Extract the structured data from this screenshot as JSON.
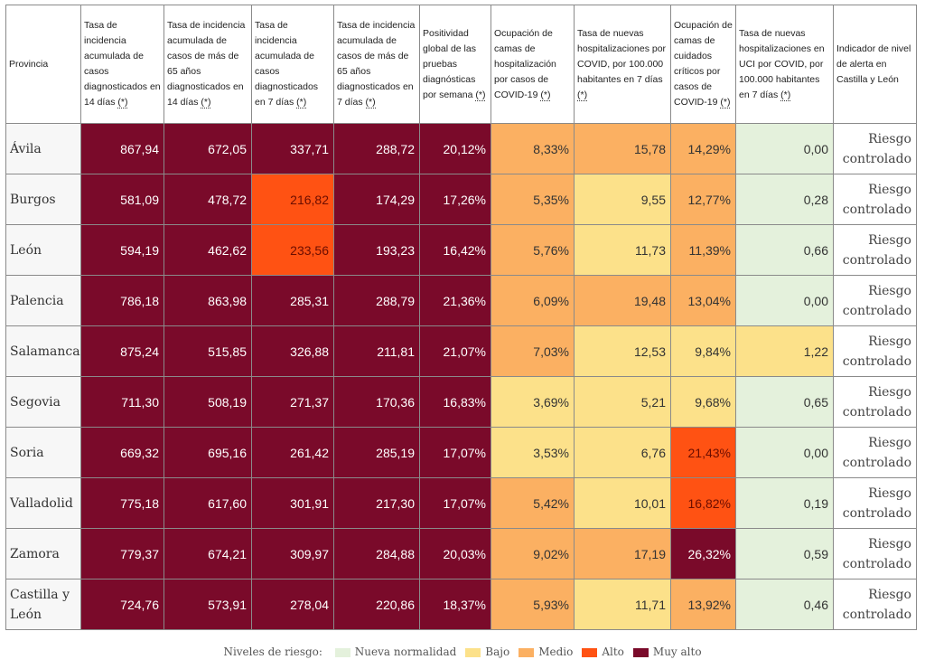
{
  "table": {
    "headers": [
      {
        "text": "Provincia",
        "star": ""
      },
      {
        "text": "Tasa de incidencia acumulada de casos diagnosticados en 14 días ",
        "star": "(*)"
      },
      {
        "text": "Tasa de incidencia acumulada de casos de más de 65 años diagnosticados en 14 días ",
        "star": "(*)"
      },
      {
        "text": "Tasa de incidencia acumulada de casos diagnosticados en 7 días ",
        "star": "(*)"
      },
      {
        "text": "Tasa de incidencia acumulada de casos de más de 65 años diagnosticados en 7 días ",
        "star": "(*)"
      },
      {
        "text": "Positividad global de las pruebas diagnósticas por semana ",
        "star": "(*)"
      },
      {
        "text": "Ocupación de camas de hospitalización por casos de COVID-19 ",
        "star": "(*)"
      },
      {
        "text": "Tasa de nuevas hospitalizaciones por COVID, por 100.000 habitantes en 7 días ",
        "star": "(*)"
      },
      {
        "text": "Ocupación de camas de cuidados críticos por casos de COVID-19 ",
        "star": "(*)"
      },
      {
        "text": "Tasa de nuevas hospitalizaciones en UCI por COVID, por 100.000 habitantes en 7 días ",
        "star": "(*)"
      },
      {
        "text": "Indicador de nivel de alerta en Castilla y León",
        "star": ""
      }
    ],
    "rows": [
      {
        "provincia": "Ávila",
        "values": [
          "867,94",
          "672,05",
          "337,71",
          "288,72",
          "20,12%",
          "8,33%",
          "15,78",
          "14,29%",
          "0,00"
        ],
        "levels": [
          "muyalto",
          "muyalto",
          "muyalto",
          "muyalto",
          "muyalto",
          "medio",
          "medio",
          "medio",
          "nueva"
        ],
        "alerta": "Riesgo controlado"
      },
      {
        "provincia": "Burgos",
        "values": [
          "581,09",
          "478,72",
          "216,82",
          "174,29",
          "17,26%",
          "5,35%",
          "9,55",
          "12,77%",
          "0,28"
        ],
        "levels": [
          "muyalto",
          "muyalto",
          "alto",
          "muyalto",
          "muyalto",
          "medio",
          "bajo",
          "medio",
          "nueva"
        ],
        "alerta": "Riesgo controlado"
      },
      {
        "provincia": "León",
        "values": [
          "594,19",
          "462,62",
          "233,56",
          "193,23",
          "16,42%",
          "5,76%",
          "11,73",
          "11,39%",
          "0,66"
        ],
        "levels": [
          "muyalto",
          "muyalto",
          "alto",
          "muyalto",
          "muyalto",
          "medio",
          "bajo",
          "medio",
          "nueva"
        ],
        "alerta": "Riesgo controlado"
      },
      {
        "provincia": "Palencia",
        "values": [
          "786,18",
          "863,98",
          "285,31",
          "288,79",
          "21,36%",
          "6,09%",
          "19,48",
          "13,04%",
          "0,00"
        ],
        "levels": [
          "muyalto",
          "muyalto",
          "muyalto",
          "muyalto",
          "muyalto",
          "medio",
          "medio",
          "medio",
          "nueva"
        ],
        "alerta": "Riesgo controlado"
      },
      {
        "provincia": "Salamanca",
        "values": [
          "875,24",
          "515,85",
          "326,88",
          "211,81",
          "21,07%",
          "7,03%",
          "12,53",
          "9,84%",
          "1,22"
        ],
        "levels": [
          "muyalto",
          "muyalto",
          "muyalto",
          "muyalto",
          "muyalto",
          "medio",
          "bajo",
          "bajo",
          "bajo"
        ],
        "alerta": "Riesgo controlado"
      },
      {
        "provincia": "Segovia",
        "values": [
          "711,30",
          "508,19",
          "271,37",
          "170,36",
          "16,83%",
          "3,69%",
          "5,21",
          "9,68%",
          "0,65"
        ],
        "levels": [
          "muyalto",
          "muyalto",
          "muyalto",
          "muyalto",
          "muyalto",
          "bajo",
          "bajo",
          "bajo",
          "nueva"
        ],
        "alerta": "Riesgo controlado"
      },
      {
        "provincia": "Soria",
        "values": [
          "669,32",
          "695,16",
          "261,42",
          "285,19",
          "17,07%",
          "3,53%",
          "6,76",
          "21,43%",
          "0,00"
        ],
        "levels": [
          "muyalto",
          "muyalto",
          "muyalto",
          "muyalto",
          "muyalto",
          "bajo",
          "bajo",
          "alto",
          "nueva"
        ],
        "alerta": "Riesgo controlado"
      },
      {
        "provincia": "Valladolid",
        "values": [
          "775,18",
          "617,60",
          "301,91",
          "217,30",
          "17,07%",
          "5,42%",
          "10,01",
          "16,82%",
          "0,19"
        ],
        "levels": [
          "muyalto",
          "muyalto",
          "muyalto",
          "muyalto",
          "muyalto",
          "medio",
          "bajo",
          "alto",
          "nueva"
        ],
        "alerta": "Riesgo controlado"
      },
      {
        "provincia": "Zamora",
        "values": [
          "779,37",
          "674,21",
          "309,97",
          "284,88",
          "20,03%",
          "9,02%",
          "17,19",
          "26,32%",
          "0,59"
        ],
        "levels": [
          "muyalto",
          "muyalto",
          "muyalto",
          "muyalto",
          "muyalto",
          "medio",
          "medio",
          "muyalto",
          "nueva"
        ],
        "alerta": "Riesgo controlado"
      },
      {
        "provincia": "Castilla y León",
        "values": [
          "724,76",
          "573,91",
          "278,04",
          "220,86",
          "18,37%",
          "5,93%",
          "11,71",
          "13,92%",
          "0,46"
        ],
        "levels": [
          "muyalto",
          "muyalto",
          "muyalto",
          "muyalto",
          "muyalto",
          "medio",
          "bajo",
          "medio",
          "nueva"
        ],
        "alerta": "Riesgo controlado"
      }
    ]
  },
  "legend": {
    "label": "Niveles de riesgo:",
    "items": [
      {
        "label": "Nueva normalidad",
        "color": "#e4f1dc"
      },
      {
        "label": "Bajo",
        "color": "#fce18a"
      },
      {
        "label": "Medio",
        "color": "#fbb062"
      },
      {
        "label": "Alto",
        "color": "#ff5213"
      },
      {
        "label": "Muy alto",
        "color": "#7a0a2a"
      }
    ]
  }
}
